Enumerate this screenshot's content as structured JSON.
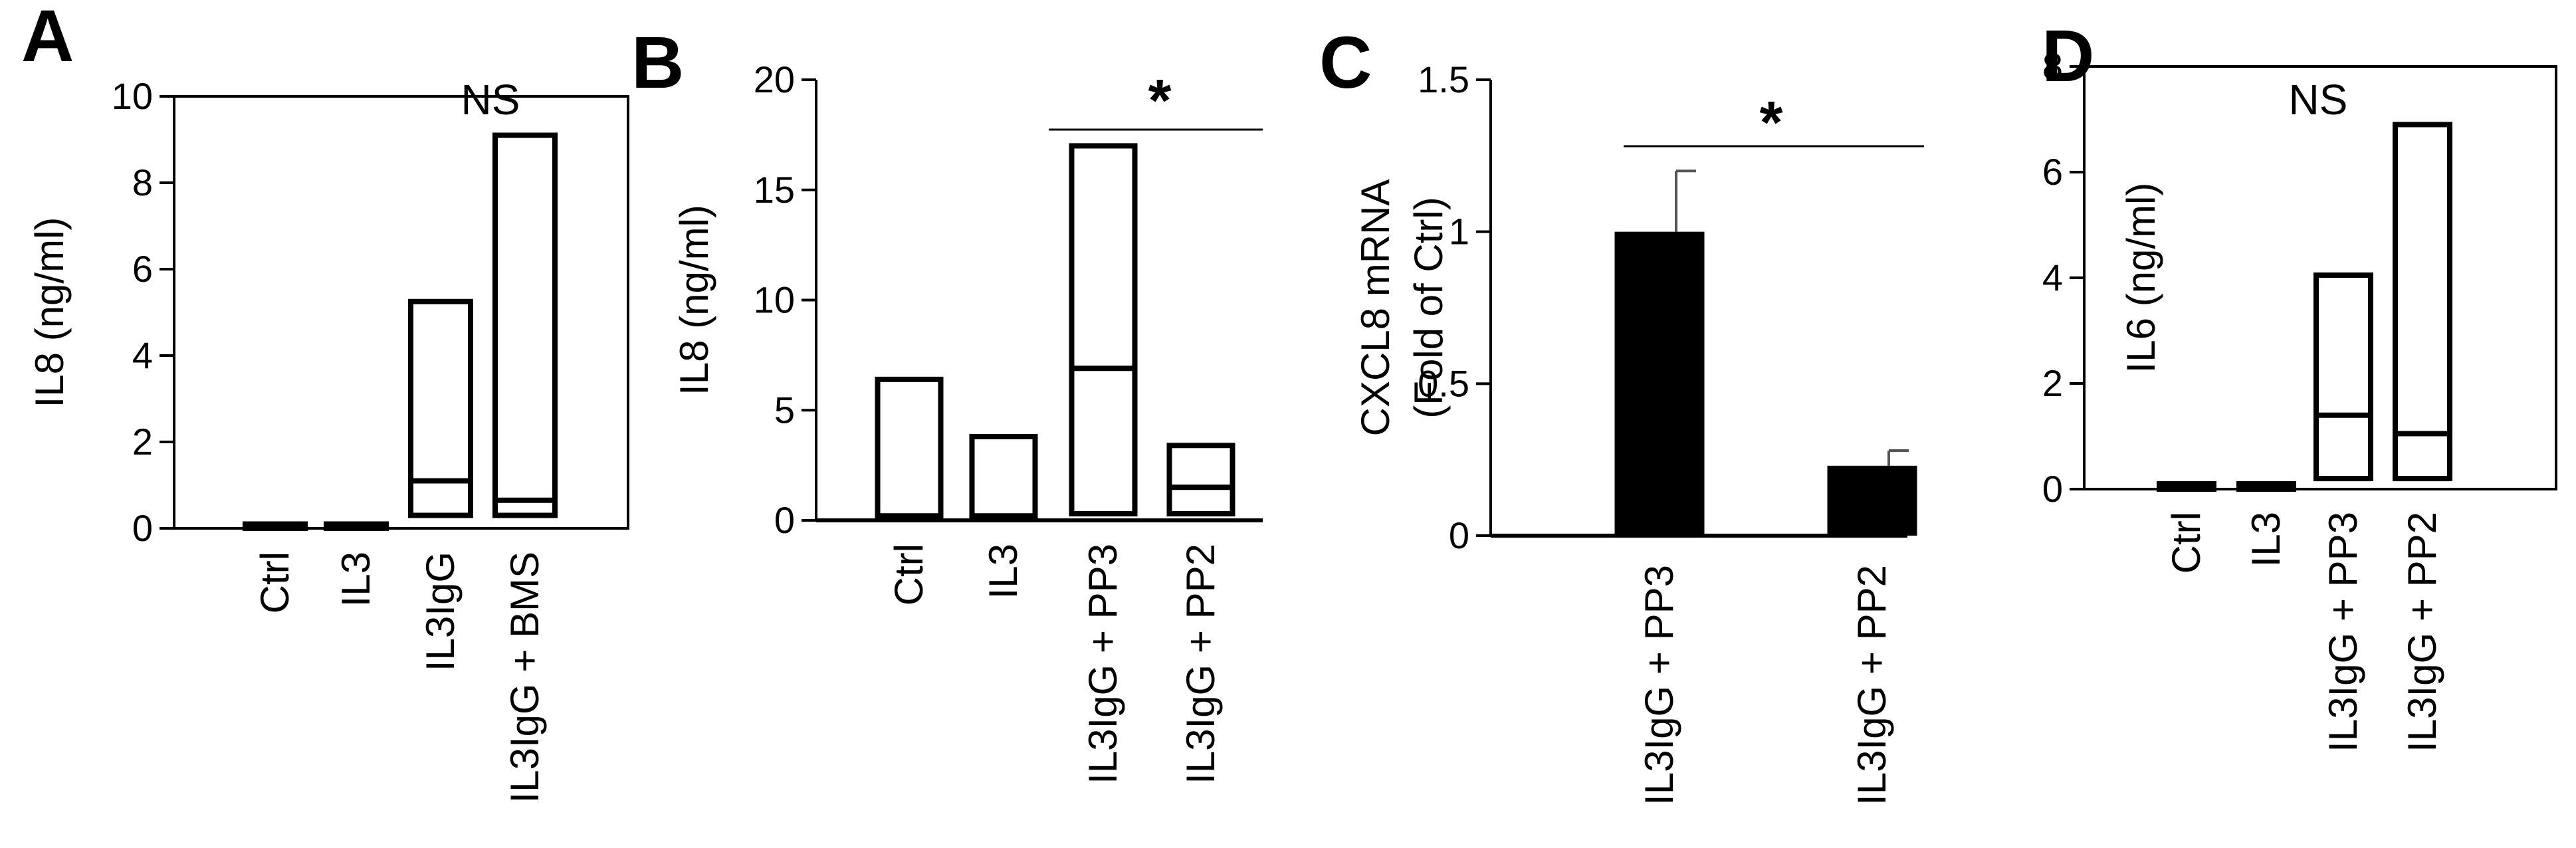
{
  "figure": {
    "panels_count": 4
  },
  "chart_data": [
    {
      "panel": "A",
      "type": "box",
      "ylabel": "IL8 (ng/ml)",
      "ylim": [
        0,
        10
      ],
      "yticks": [
        "0",
        "2",
        "4",
        "6",
        "8",
        "10"
      ],
      "categories": [
        "Ctrl",
        "IL3",
        "IL3IgG",
        "IL3IgG + BMS"
      ],
      "boxes": [
        {
          "min": 0,
          "median": 0.05,
          "max": 0.1
        },
        {
          "min": 0,
          "median": 0.05,
          "max": 0.1
        },
        {
          "min": 0.3,
          "median": 1.1,
          "max": 5.25
        },
        {
          "min": 0.3,
          "median": 0.65,
          "max": 9.1
        }
      ],
      "annotation": {
        "text": "NS"
      }
    },
    {
      "panel": "B",
      "type": "box",
      "ylabel": "IL8 (ng/ml)",
      "ylim": [
        0,
        20
      ],
      "yticks": [
        "0",
        "5",
        "10",
        "15",
        "20"
      ],
      "categories": [
        "Ctrl",
        "IL3",
        "IL3IgG + PP3",
        "IL3IgG + PP2"
      ],
      "boxes": [
        {
          "min": 0.2,
          "median": 0.2,
          "max": 6.4
        },
        {
          "min": 0.2,
          "median": 0.2,
          "max": 3.8
        },
        {
          "min": 0.3,
          "median": 6.9,
          "max": 17.0
        },
        {
          "min": 0.3,
          "median": 1.5,
          "max": 3.4
        }
      ],
      "annotation": {
        "text": "*",
        "from": 2,
        "to": 3
      }
    },
    {
      "panel": "C",
      "type": "bar",
      "ylabel": [
        "CXCL8 mRNA",
        "(Fold of Ctrl)"
      ],
      "ylim": [
        0,
        1.5
      ],
      "yticks": [
        "0",
        "0.5",
        "1",
        "1.5"
      ],
      "categories": [
        "IL3IgG + PP3",
        "IL3IgG + PP2"
      ],
      "values": [
        1.0,
        0.23
      ],
      "errors": [
        0.2,
        0.05
      ],
      "annotation": {
        "text": "*",
        "from": 0,
        "to": 1
      }
    },
    {
      "panel": "D",
      "type": "box",
      "ylabel": "IL6 (ng/ml)",
      "ylim": [
        0,
        8
      ],
      "yticks": [
        "0",
        "2",
        "4",
        "6",
        "8"
      ],
      "categories": [
        "Ctrl",
        "IL3",
        "IL3IgG + PP3",
        "IL3IgG + PP2"
      ],
      "boxes": [
        {
          "min": 0,
          "median": 0.05,
          "max": 0.1
        },
        {
          "min": 0,
          "median": 0.05,
          "max": 0.1
        },
        {
          "min": 0.2,
          "median": 1.4,
          "max": 4.05
        },
        {
          "min": 0.2,
          "median": 1.05,
          "max": 6.9
        }
      ],
      "annotation": {
        "text": "NS"
      }
    }
  ]
}
